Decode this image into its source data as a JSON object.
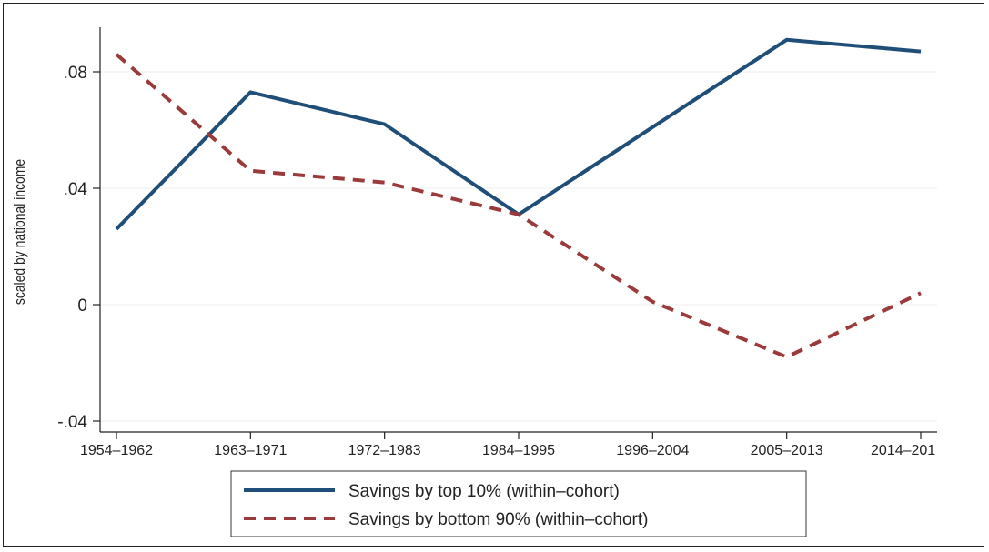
{
  "chart_data": {
    "type": "line",
    "title": "",
    "xlabel": "",
    "ylabel": "scaled by national income",
    "categories": [
      "1954–1962",
      "1963–1971",
      "1972–1983",
      "1984–1995",
      "1996–2004",
      "2005–2013",
      "2014–201"
    ],
    "ylim": [
      -0.04,
      0.095
    ],
    "yticks": [
      -0.04,
      0,
      0.04,
      0.08
    ],
    "ytick_labels": [
      "-.04",
      "0",
      ".04",
      ".08"
    ],
    "grid": true,
    "legend_position": "bottom",
    "series": [
      {
        "name": "Savings by top 10% (within–cohort)",
        "color": "#1f4e79",
        "style": "solid",
        "values": [
          0.026,
          0.073,
          0.062,
          0.031,
          0.061,
          0.091,
          0.087
        ]
      },
      {
        "name": "Savings by bottom 90% (within–cohort)",
        "color": "#9b3a3a",
        "style": "dashed",
        "values": [
          0.086,
          0.046,
          0.042,
          0.031,
          0.001,
          -0.018,
          0.004
        ]
      }
    ]
  }
}
